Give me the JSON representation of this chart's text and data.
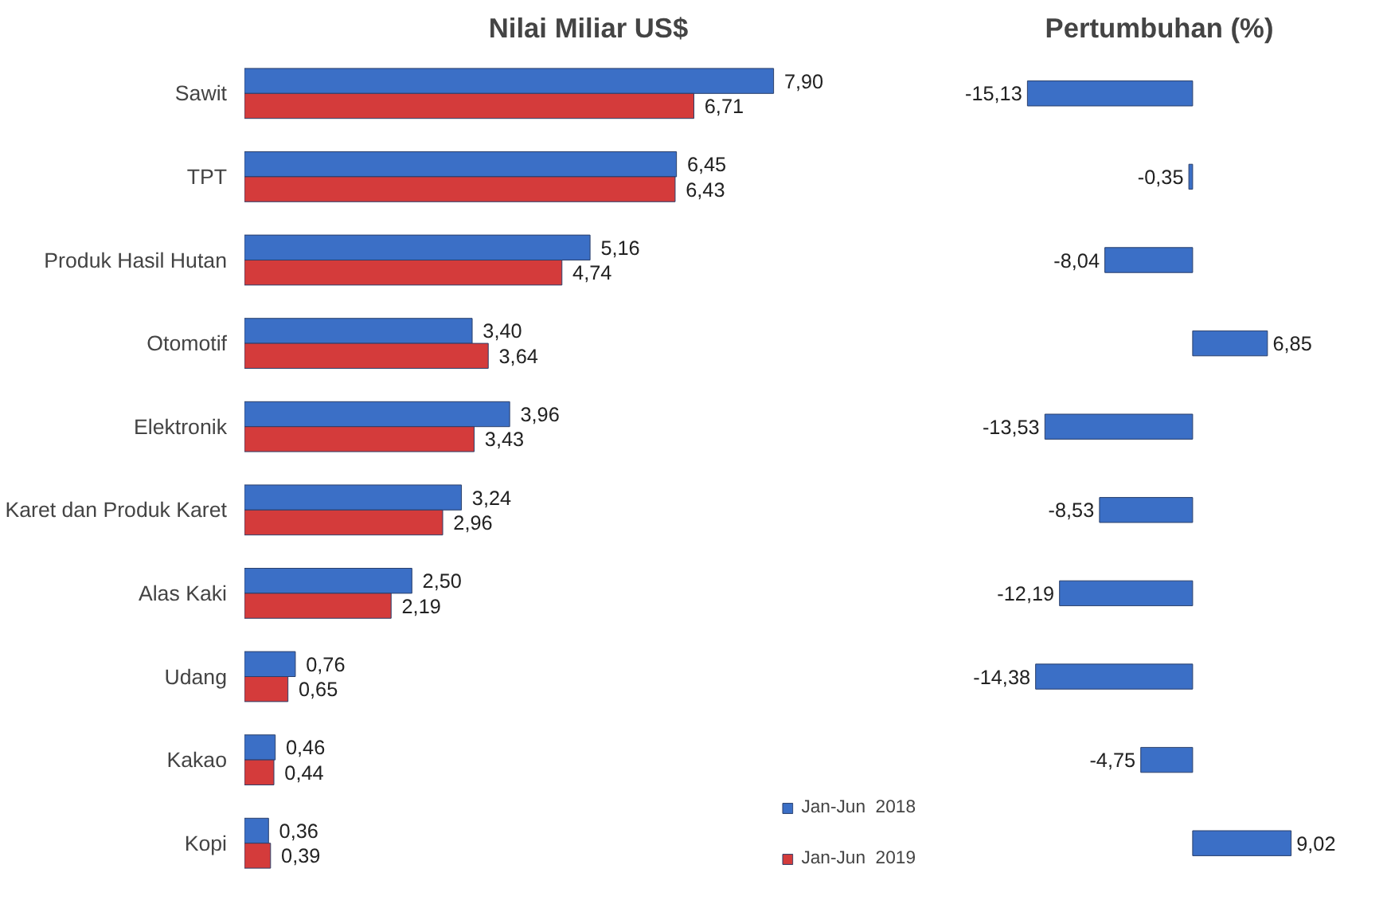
{
  "chart_data": [
    {
      "type": "bar",
      "orientation": "horizontal",
      "title": "Nilai Miliar US$",
      "categories": [
        "Sawit",
        "TPT",
        "Produk Hasil Hutan",
        "Otomotif",
        "Elektronik",
        "Karet dan Produk Karet",
        "Alas Kaki",
        "Udang",
        "Kakao",
        "Kopi"
      ],
      "series": [
        {
          "name": "Jan-Jun  2018",
          "color": "#3b6fc6",
          "values": [
            7.9,
            6.45,
            5.16,
            3.4,
            3.96,
            3.24,
            2.5,
            0.76,
            0.46,
            0.36
          ],
          "value_labels": [
            "7,90",
            "6,45",
            "5,16",
            "3,40",
            "3,96",
            "3,24",
            "2,50",
            "0,76",
            "0,46",
            "0,36"
          ]
        },
        {
          "name": "Jan-Jun  2019",
          "color": "#d43b3b",
          "values": [
            6.71,
            6.43,
            4.74,
            3.64,
            3.43,
            2.96,
            2.19,
            0.65,
            0.44,
            0.39
          ],
          "value_labels": [
            "6,71",
            "6,43",
            "4,74",
            "3,64",
            "3,43",
            "2,96",
            "2,19",
            "0,65",
            "0,44",
            "0,39"
          ]
        }
      ],
      "legend": "bottom right",
      "tick_labels": "y",
      "grid": false
    },
    {
      "type": "bar",
      "orientation": "horizontal",
      "title": "Pertumbuhan (%)",
      "categories": [
        null,
        null,
        null,
        null,
        null,
        null,
        null,
        null,
        null,
        null
      ],
      "series": [
        {
          "color": "#3b6fc6",
          "values": [
            -15.13,
            -0.35,
            -8.04,
            6.85,
            -13.53,
            -8.53,
            -12.19,
            -14.38,
            -4.75,
            9.02
          ],
          "value_labels": [
            "-15,13",
            "-0,35",
            "-8,04",
            "6,85",
            "-13,53",
            "-8,53",
            "-12,19",
            "-14,38",
            "-4,75",
            "9,02"
          ]
        }
      ],
      "tick_labels": false,
      "grid": false
    }
  ]
}
